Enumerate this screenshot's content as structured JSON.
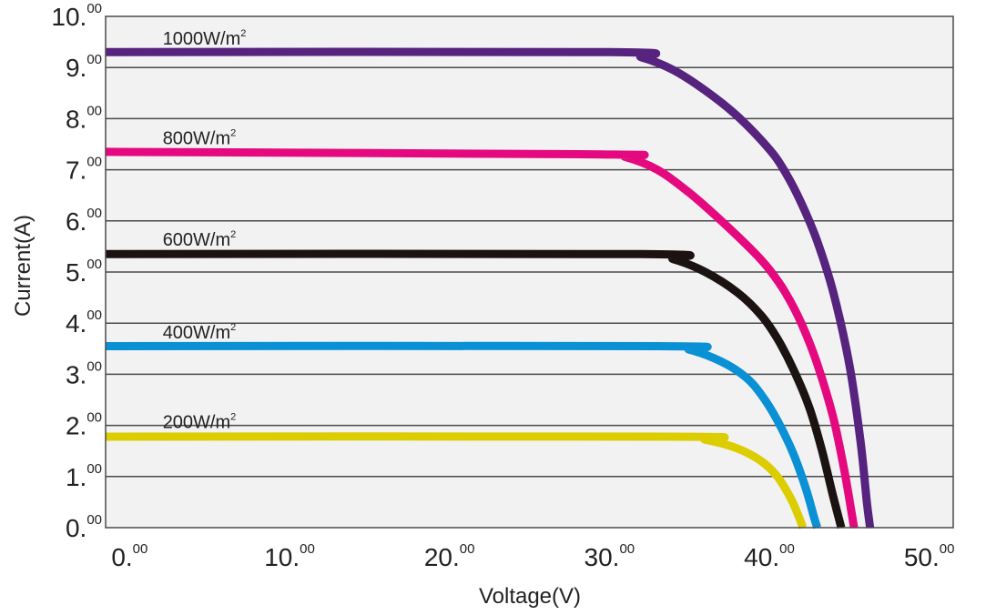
{
  "chart_data": {
    "type": "line",
    "title": "",
    "xlabel": "Voltage(V)",
    "ylabel": "Current(A)",
    "xlim": [
      -1.5,
      51.5
    ],
    "ylim": [
      0,
      10
    ],
    "grid": {
      "horizontal": true,
      "vertical": false
    },
    "legend": "inline labels above each curve",
    "background_color": "#f2f2f2",
    "x_ticks": [
      {
        "value": 0,
        "main": "0.",
        "sup": "00"
      },
      {
        "value": 10,
        "main": "10.",
        "sup": "00"
      },
      {
        "value": 20,
        "main": "20.",
        "sup": "00"
      },
      {
        "value": 30,
        "main": "30.",
        "sup": "00"
      },
      {
        "value": 40,
        "main": "40.",
        "sup": "00"
      },
      {
        "value": 50,
        "main": "50.",
        "sup": "00"
      }
    ],
    "y_ticks": [
      {
        "value": 0,
        "main": "0.",
        "sup": "00"
      },
      {
        "value": 1,
        "main": "1.",
        "sup": "00"
      },
      {
        "value": 2,
        "main": "2.",
        "sup": "00"
      },
      {
        "value": 3,
        "main": "3.",
        "sup": "00"
      },
      {
        "value": 4,
        "main": "4.",
        "sup": "00"
      },
      {
        "value": 5,
        "main": "5.",
        "sup": "00"
      },
      {
        "value": 6,
        "main": "6.",
        "sup": "00"
      },
      {
        "value": 7,
        "main": "7.",
        "sup": "00"
      },
      {
        "value": 8,
        "main": "8.",
        "sup": "00"
      },
      {
        "value": 9,
        "main": "9.",
        "sup": "00"
      },
      {
        "value": 10,
        "main": "10.",
        "sup": "00"
      }
    ],
    "series": [
      {
        "name": "1000W/m²",
        "label_main": "1000W/m",
        "label_sup": "2",
        "color": "#56237f",
        "label_at": [
          1.5,
          9.45
        ],
        "points": [
          [
            -1.5,
            9.3
          ],
          [
            30,
            9.3
          ],
          [
            32,
            9.2
          ],
          [
            34,
            8.95
          ],
          [
            36,
            8.55
          ],
          [
            38,
            8.05
          ],
          [
            40,
            7.4
          ],
          [
            41,
            6.95
          ],
          [
            42,
            6.35
          ],
          [
            43,
            5.6
          ],
          [
            44,
            4.6
          ],
          [
            45,
            3.2
          ],
          [
            45.7,
            1.7
          ],
          [
            46.1,
            0.5
          ],
          [
            46.3,
            0
          ]
        ]
      },
      {
        "name": "800W/m²",
        "label_main": "800W/m",
        "label_sup": "2",
        "color": "#e5097f",
        "label_at": [
          1.5,
          7.5
        ],
        "points": [
          [
            -1.5,
            7.35
          ],
          [
            29.5,
            7.3
          ],
          [
            31,
            7.25
          ],
          [
            33,
            7.0
          ],
          [
            35,
            6.55
          ],
          [
            37,
            6.0
          ],
          [
            39,
            5.4
          ],
          [
            40,
            5.05
          ],
          [
            41,
            4.6
          ],
          [
            42,
            4.0
          ],
          [
            43,
            3.2
          ],
          [
            44,
            2.15
          ],
          [
            44.7,
            1.1
          ],
          [
            45.3,
            0
          ]
        ]
      },
      {
        "name": "600W/m²",
        "label_main": "600W/m",
        "label_sup": "2",
        "color": "#1b1311",
        "label_at": [
          1.5,
          5.52
        ],
        "points": [
          [
            -1.5,
            5.35
          ],
          [
            32,
            5.35
          ],
          [
            34,
            5.25
          ],
          [
            36,
            5.0
          ],
          [
            38,
            4.6
          ],
          [
            39.5,
            4.15
          ],
          [
            40.5,
            3.7
          ],
          [
            41.5,
            3.1
          ],
          [
            42.5,
            2.35
          ],
          [
            43.3,
            1.5
          ],
          [
            44,
            0.6
          ],
          [
            44.5,
            0
          ]
        ]
      },
      {
        "name": "400W/m²",
        "label_main": "400W/m",
        "label_sup": "2",
        "color": "#0a90d4",
        "label_at": [
          1.5,
          3.7
        ],
        "points": [
          [
            -1.5,
            3.55
          ],
          [
            33,
            3.55
          ],
          [
            35,
            3.48
          ],
          [
            37,
            3.25
          ],
          [
            38.5,
            2.95
          ],
          [
            39.5,
            2.6
          ],
          [
            40.5,
            2.1
          ],
          [
            41.5,
            1.45
          ],
          [
            42.3,
            0.75
          ],
          [
            42.8,
            0.2
          ],
          [
            43.0,
            0
          ]
        ]
      },
      {
        "name": "200W/m²",
        "label_main": "200W/m",
        "label_sup": "2",
        "color": "#dccd00",
        "label_at": [
          1.5,
          1.95
        ],
        "points": [
          [
            -1.5,
            1.78
          ],
          [
            34,
            1.78
          ],
          [
            36,
            1.72
          ],
          [
            38,
            1.55
          ],
          [
            39.5,
            1.3
          ],
          [
            40.5,
            1.0
          ],
          [
            41.3,
            0.6
          ],
          [
            41.8,
            0.25
          ],
          [
            42.1,
            0
          ]
        ]
      }
    ]
  }
}
